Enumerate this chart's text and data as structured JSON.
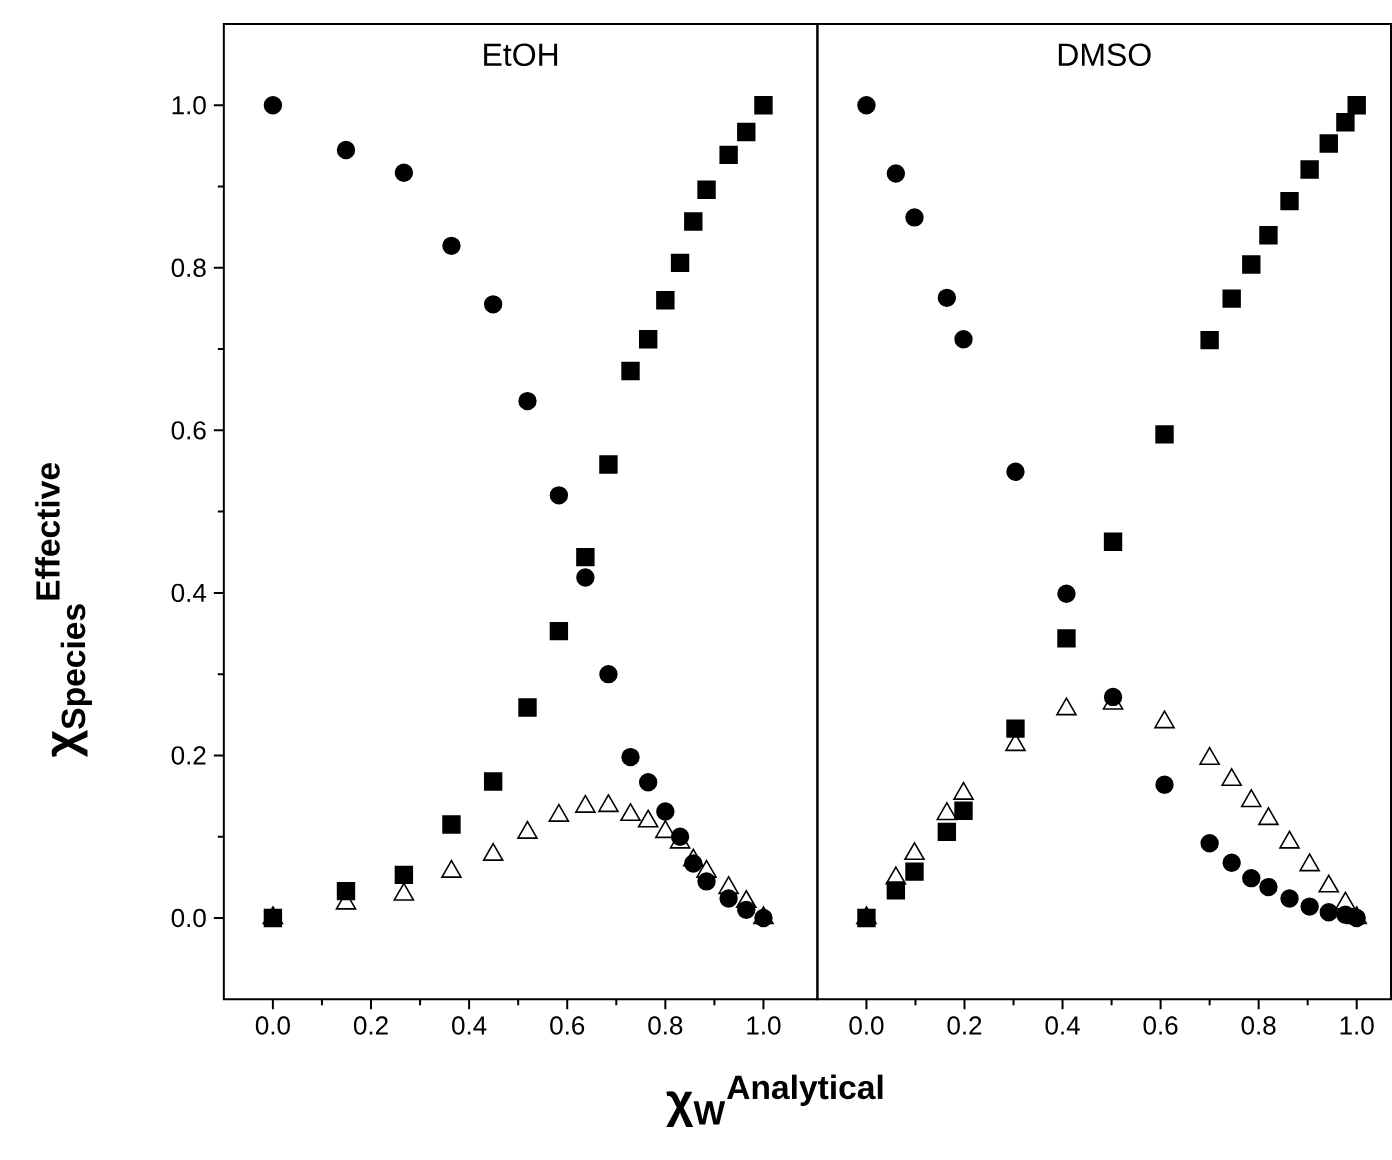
{
  "chart_data": [
    {
      "type": "scatter",
      "title": "EtOH",
      "xlabel": "χ$_{W}$$^{Analytical}$",
      "ylabel": "χ$_{Species}$$^{Effective}$",
      "xlim": [
        -0.1,
        1.11
      ],
      "ylim": [
        -0.1,
        1.1
      ],
      "xticks": [
        {
          "value": 0,
          "label": "0.0"
        },
        {
          "value": 0.2,
          "label": "0.2"
        },
        {
          "value": 0.4,
          "label": "0.4"
        },
        {
          "value": 0.6,
          "label": "0.6"
        },
        {
          "value": 0.8,
          "label": "0.8"
        },
        {
          "value": 1,
          "label": "1.0"
        }
      ],
      "yticks": [
        {
          "value": 0,
          "label": "0.0"
        },
        {
          "value": 0.2,
          "label": "0.2"
        },
        {
          "value": 0.4,
          "label": "0.4"
        },
        {
          "value": 0.6,
          "label": "0.6"
        },
        {
          "value": 0.8,
          "label": "0.8"
        },
        {
          "value": 1,
          "label": "1.0"
        }
      ],
      "x": [
        0,
        0.149,
        0.267,
        0.364,
        0.449,
        0.519,
        0.583,
        0.637,
        0.684,
        0.729,
        0.765,
        0.8,
        0.83,
        0.857,
        0.884,
        0.929,
        0.965,
        1.0
      ],
      "series": [
        {
          "color": "#000000",
          "marker": "circle",
          "values": [
            1.0,
            0.945,
            0.917,
            0.827,
            0.755,
            0.636,
            0.52,
            0.419,
            0.3,
            0.198,
            0.167,
            0.131,
            0.1,
            0.067,
            0.045,
            0.024,
            0.01,
            0.0
          ]
        },
        {
          "color": "#000000",
          "marker": "square",
          "values": [
            0.0,
            0.033,
            0.053,
            0.115,
            0.168,
            0.259,
            0.353,
            0.444,
            0.558,
            0.673,
            0.712,
            0.76,
            0.806,
            0.857,
            0.896,
            0.939,
            0.967,
            1.0
          ]
        },
        {
          "color": "#000000",
          "marker": "triangle",
          "values": [
            0.0,
            0.018,
            0.029,
            0.057,
            0.078,
            0.105,
            0.126,
            0.137,
            0.138,
            0.127,
            0.119,
            0.106,
            0.093,
            0.071,
            0.057,
            0.037,
            0.02,
            0.0
          ]
        }
      ]
    },
    {
      "type": "scatter",
      "title": "DMSO",
      "tick_labels": "x",
      "xlim": [
        -0.1,
        1.07
      ],
      "ylim": [
        -0.1,
        1.1
      ],
      "xticks": [
        {
          "value": 0,
          "label": "0.0"
        },
        {
          "value": 0.2,
          "label": "0.2"
        },
        {
          "value": 0.4,
          "label": "0.4"
        },
        {
          "value": 0.6,
          "label": "0.6"
        },
        {
          "value": 0.8,
          "label": "0.8"
        },
        {
          "value": 1,
          "label": "1.0"
        }
      ],
      "x": [
        0,
        0.06,
        0.098,
        0.164,
        0.198,
        0.304,
        0.408,
        0.503,
        0.608,
        0.7,
        0.745,
        0.785,
        0.82,
        0.863,
        0.904,
        0.943,
        0.977,
        1.0
      ],
      "series": [
        {
          "color": "#000000",
          "marker": "circle",
          "values": [
            1.0,
            0.916,
            0.862,
            0.763,
            0.712,
            0.549,
            0.399,
            0.272,
            0.164,
            0.092,
            0.068,
            0.049,
            0.038,
            0.024,
            0.014,
            0.007,
            0.004,
            0.0
          ]
        },
        {
          "color": "#000000",
          "marker": "square",
          "values": [
            0.0,
            0.034,
            0.057,
            0.106,
            0.132,
            0.233,
            0.344,
            0.463,
            0.595,
            0.711,
            0.762,
            0.804,
            0.84,
            0.882,
            0.921,
            0.953,
            0.979,
            1.0
          ]
        },
        {
          "color": "#000000",
          "marker": "triangle",
          "values": [
            0.0,
            0.049,
            0.079,
            0.128,
            0.153,
            0.213,
            0.257,
            0.264,
            0.241,
            0.196,
            0.17,
            0.144,
            0.122,
            0.093,
            0.065,
            0.039,
            0.018,
            0.0
          ]
        }
      ]
    }
  ]
}
